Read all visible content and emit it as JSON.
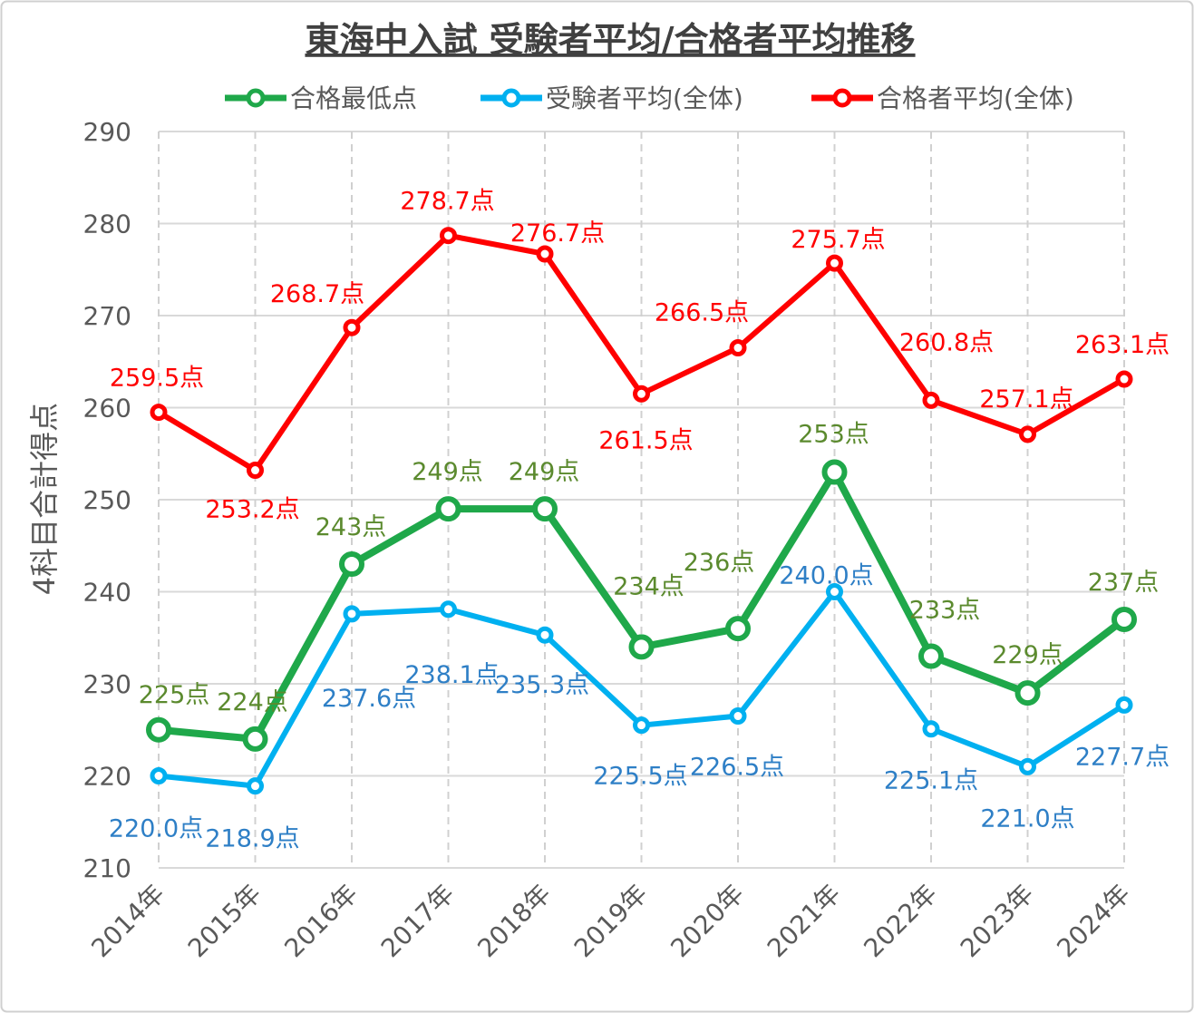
{
  "chart_data": {
    "type": "line",
    "title": "東海中入試 受験者平均/合格者平均推移",
    "xlabel": "",
    "ylabel": "4科目合計得点",
    "ylim": [
      210,
      290
    ],
    "yticks": [
      "210",
      "220",
      "230",
      "240",
      "250",
      "260",
      "270",
      "280",
      "290"
    ],
    "categories": [
      "2014年",
      "2015年",
      "2016年",
      "2017年",
      "2018年",
      "2019年",
      "2020年",
      "2021年",
      "2022年",
      "2023年",
      "2024年"
    ],
    "grid": true,
    "legend_position": "top",
    "series": [
      {
        "name": "合格最低点",
        "color": "#1fa84a",
        "label_color": "#5b8a2e",
        "values": [
          225,
          224,
          243,
          249,
          249,
          234,
          236,
          253,
          233,
          229,
          237
        ],
        "labels": [
          "225点",
          "224点",
          "243点",
          "249点",
          "249点",
          "234点",
          "236点",
          "253点",
          "233点",
          "229点",
          "237点"
        ]
      },
      {
        "name": "受験者平均(全体)",
        "color": "#00b0f0",
        "label_color": "#2e7fc6",
        "values": [
          220.0,
          218.9,
          237.6,
          238.1,
          235.3,
          225.5,
          226.5,
          240.0,
          225.1,
          221.0,
          227.7
        ],
        "labels": [
          "220.0点",
          "218.9点",
          "237.6点",
          "238.1点",
          "235.3点",
          "225.5点",
          "226.5点",
          "240.0点",
          "225.1点",
          "221.0点",
          "227.7点"
        ]
      },
      {
        "name": "合格者平均(全体)",
        "color": "#ff0000",
        "label_color": "#ff0000",
        "values": [
          259.5,
          253.2,
          268.7,
          278.7,
          276.7,
          261.5,
          266.5,
          275.7,
          260.8,
          257.1,
          263.1
        ],
        "labels": [
          "259.5点",
          "253.2点",
          "268.7点",
          "278.7点",
          "276.7点",
          "261.5点",
          "266.5点",
          "275.7点",
          "260.8点",
          "257.1点",
          "263.1点"
        ]
      }
    ]
  }
}
